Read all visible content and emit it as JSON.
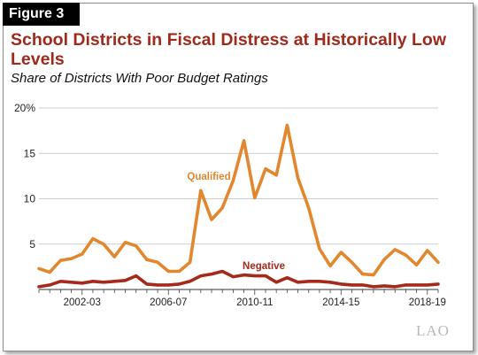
{
  "figure_label": "Figure 3",
  "chart_data": {
    "type": "line",
    "title": "School Districts in Fiscal Distress at Historically Low Levels",
    "subtitle": "Share of Districts With Poor Budget Ratings",
    "ylim": [
      0,
      20
    ],
    "y_ticks": [
      5,
      10,
      15,
      20
    ],
    "y_tick_labels": [
      "5",
      "10",
      "15",
      "20%"
    ],
    "x_tick_labels": [
      "2002-03",
      "2006-07",
      "2010-11",
      "2014-15",
      "2018-19"
    ],
    "grid": true,
    "colors": {
      "qualified": "#e3872f",
      "negative": "#a52a1c",
      "title": "#9e2a1c"
    },
    "series": [
      {
        "name": "Qualified",
        "values": [
          2.3,
          1.9,
          3.2,
          3.4,
          3.9,
          5.6,
          5.0,
          3.6,
          5.2,
          4.8,
          3.3,
          3.0,
          2.0,
          2.0,
          3.0,
          10.9,
          7.7,
          9.0,
          12.0,
          16.4,
          10.1,
          13.3,
          12.6,
          18.1,
          12.3,
          9.0,
          4.5,
          2.6,
          4.1,
          3.0,
          1.7,
          1.6,
          3.3,
          4.4,
          3.8,
          2.7,
          4.3,
          3.0
        ]
      },
      {
        "name": "Negative",
        "values": [
          0.3,
          0.5,
          0.9,
          0.8,
          0.7,
          0.9,
          0.8,
          0.9,
          1.0,
          1.5,
          0.6,
          0.5,
          0.5,
          0.6,
          0.9,
          1.5,
          1.7,
          2.0,
          1.4,
          1.6,
          1.5,
          1.5,
          0.8,
          1.3,
          0.8,
          0.9,
          0.9,
          0.8,
          0.6,
          0.5,
          0.5,
          0.3,
          0.4,
          0.3,
          0.5,
          0.5,
          0.5,
          0.6
        ]
      }
    ]
  },
  "watermark": "LAO"
}
